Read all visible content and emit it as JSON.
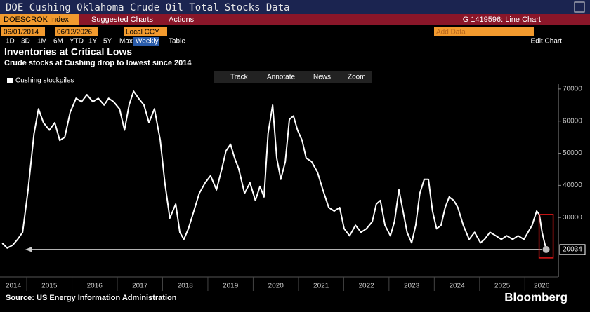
{
  "ui": {
    "window_title": "DOE Cushing Oklahoma Crude Oil Total Stocks Data",
    "ticker": "DOESCROK Index",
    "menu": [
      "Suggested Charts",
      "Actions"
    ],
    "chart_id": "G 1419596: Line Chart",
    "start_date": "06/01/2014",
    "end_date": "06/12/2026",
    "currency": "Local CCY",
    "add_data": "Add Data",
    "periods": [
      "1D",
      "3D",
      "1M",
      "6M",
      "YTD",
      "1Y",
      "5Y",
      "Max"
    ],
    "frequency": "Weekly",
    "table": "Table",
    "edit_chart": "Edit Chart",
    "tools": [
      "Track",
      "Annotate",
      "News",
      "Zoom"
    ],
    "source": "Source: US Energy Information Administration",
    "brand": "Bloomberg"
  },
  "chart_data": {
    "type": "line",
    "title": "Inventories at Critical Lows",
    "subtitle": "Crude stocks at Cushing drop to lowest since 2014",
    "x": [
      2014.46,
      2014.57,
      2014.69,
      2014.8,
      2014.91,
      2015.03,
      2015.16,
      2015.26,
      2015.37,
      2015.5,
      2015.62,
      2015.73,
      2015.84,
      2015.96,
      2016.09,
      2016.21,
      2016.33,
      2016.46,
      2016.58,
      2016.71,
      2016.81,
      2016.92,
      2017.05,
      2017.16,
      2017.26,
      2017.36,
      2017.47,
      2017.59,
      2017.7,
      2017.82,
      2017.95,
      2018.05,
      2018.16,
      2018.29,
      2018.38,
      2018.47,
      2018.57,
      2018.69,
      2018.81,
      2018.94,
      2019.06,
      2019.19,
      2019.31,
      2019.4,
      2019.5,
      2019.59,
      2019.68,
      2019.81,
      2019.93,
      2020.05,
      2020.15,
      2020.24,
      2020.33,
      2020.43,
      2020.52,
      2020.61,
      2020.71,
      2020.8,
      2020.89,
      2020.98,
      2021.08,
      2021.17,
      2021.29,
      2021.42,
      2021.54,
      2021.67,
      2021.79,
      2021.91,
      2022.01,
      2022.13,
      2022.26,
      2022.38,
      2022.5,
      2022.63,
      2022.72,
      2022.81,
      2022.91,
      2023.03,
      2023.12,
      2023.22,
      2023.31,
      2023.4,
      2023.5,
      2023.59,
      2023.68,
      2023.78,
      2023.87,
      2023.96,
      2024.05,
      2024.15,
      2024.24,
      2024.33,
      2024.43,
      2024.52,
      2024.64,
      2024.77,
      2024.89,
      2025.02,
      2025.11,
      2025.23,
      2025.36,
      2025.48,
      2025.6,
      2025.73,
      2025.85,
      2025.98,
      2026.07,
      2026.16,
      2026.26,
      2026.32,
      2026.38,
      2026.47
    ],
    "series": [
      {
        "name": "Cushing stockpiles",
        "color": "#ffffff",
        "values": [
          22000,
          20500,
          21400,
          23200,
          25400,
          38600,
          56000,
          63800,
          59500,
          57200,
          59500,
          54000,
          55000,
          62700,
          67100,
          66000,
          68200,
          66000,
          67100,
          65000,
          67100,
          66000,
          63800,
          57200,
          65000,
          69300,
          67100,
          65000,
          59500,
          63800,
          54000,
          40800,
          29800,
          34200,
          25400,
          23200,
          26500,
          32000,
          37500,
          40800,
          43000,
          38600,
          45200,
          50700,
          52800,
          48500,
          45200,
          37500,
          40800,
          35300,
          39700,
          36400,
          56200,
          65000,
          48500,
          41900,
          47400,
          60500,
          61600,
          57200,
          54000,
          48500,
          47400,
          44100,
          38600,
          33100,
          32000,
          33100,
          26500,
          24300,
          27600,
          25400,
          26500,
          28700,
          34200,
          35300,
          27600,
          24300,
          28700,
          38600,
          32000,
          25400,
          22100,
          27600,
          37500,
          41900,
          41900,
          32000,
          26500,
          27600,
          33100,
          36400,
          35300,
          33100,
          27600,
          23200,
          25400,
          22100,
          23200,
          25400,
          24300,
          23200,
          24300,
          23200,
          24300,
          23200,
          25400,
          27600,
          32000,
          30900,
          25400,
          20034
        ]
      }
    ],
    "xlim": [
      2014.41,
      2026.74
    ],
    "xticks": [
      2014,
      2015,
      2016,
      2017,
      2018,
      2019,
      2020,
      2021,
      2022,
      2023,
      2024,
      2025,
      2026
    ],
    "ylim": [
      11500,
      71500
    ],
    "yticks": [
      30000,
      40000,
      50000,
      60000,
      70000
    ]
  }
}
